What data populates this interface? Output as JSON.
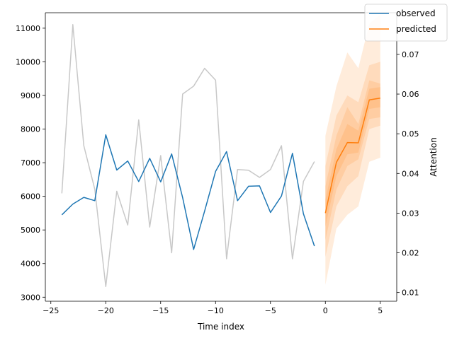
{
  "chart_data": {
    "type": "line",
    "xlabel": "Time index",
    "ylabel_left": "",
    "ylabel_right": "Attention",
    "xlim": [
      -25.5,
      6.5
    ],
    "ylim_left": [
      2880,
      11460
    ],
    "ylim_right": [
      0.0078,
      0.0805
    ],
    "x_ticks": [
      -25,
      -20,
      -15,
      -10,
      -5,
      0,
      5
    ],
    "y_ticks_left": [
      3000,
      4000,
      5000,
      6000,
      7000,
      8000,
      9000,
      10000,
      11000
    ],
    "y_ticks_right": [
      0.01,
      0.02,
      0.03,
      0.04,
      0.05,
      0.06,
      0.07
    ],
    "grid": false,
    "legend": {
      "placement": "top-right"
    },
    "series": [
      {
        "name": "observed",
        "axis": "left",
        "color": "#1f77b4",
        "x": [
          -24,
          -23,
          -22,
          -21,
          -20,
          -19,
          -18,
          -17,
          -16,
          -15,
          -14,
          -13,
          -12,
          -11,
          -10,
          -9,
          -8,
          -7,
          -6,
          -5,
          -4,
          -3,
          -2,
          -1
        ],
        "values": [
          5450,
          5770,
          5970,
          5870,
          7830,
          6780,
          7050,
          6440,
          7130,
          6430,
          7260,
          5960,
          4420,
          5560,
          6740,
          7330,
          5870,
          6300,
          6310,
          5520,
          6010,
          7280,
          5480,
          4520
        ]
      },
      {
        "name": "predicted",
        "axis": "left",
        "color": "#ff7f0e",
        "x": [
          0,
          1,
          2,
          3,
          4,
          5
        ],
        "values": [
          5500,
          7010,
          7600,
          7590,
          8870,
          8920
        ]
      },
      {
        "axis": "right",
        "color": "#c8c8c8",
        "x": [
          -24,
          -23,
          -22,
          -21,
          -20,
          -19,
          -18,
          -17,
          -16,
          -15,
          -14,
          -13,
          -12,
          -11,
          -10,
          -9,
          -8,
          -7,
          -6,
          -5,
          -4,
          -3,
          -2,
          -1
        ],
        "values": [
          0.035,
          0.0775,
          0.047,
          0.036,
          0.0115,
          0.0355,
          0.027,
          0.0535,
          0.0265,
          0.0445,
          0.02,
          0.06,
          0.062,
          0.0665,
          0.0635,
          0.0185,
          0.041,
          0.0408,
          0.039,
          0.041,
          0.047,
          0.0185,
          0.038,
          0.043
        ]
      }
    ],
    "bands": [
      {
        "color": "#ff7f0e",
        "opacity": 0.15,
        "x": [
          0,
          1,
          2,
          3,
          4,
          5
        ],
        "lower": [
          3370,
          5040,
          5450,
          5700,
          7030,
          7150
        ],
        "upper": [
          7800,
          9270,
          10280,
          9810,
          11140,
          11400
        ]
      },
      {
        "color": "#ff7f0e",
        "opacity": 0.15,
        "x": [
          0,
          1,
          2,
          3,
          4,
          5
        ],
        "lower": [
          4200,
          5700,
          6300,
          6600,
          8000,
          8100
        ],
        "upper": [
          6900,
          8400,
          9000,
          8800,
          9900,
          10000
        ]
      },
      {
        "color": "#ff7f0e",
        "opacity": 0.15,
        "x": [
          0,
          1,
          2,
          3,
          4,
          5
        ],
        "lower": [
          4700,
          6200,
          6900,
          7100,
          8300,
          8350
        ],
        "upper": [
          6300,
          7800,
          8650,
          8150,
          9450,
          9350
        ]
      },
      {
        "color": "#ff7f0e",
        "opacity": 0.15,
        "x": [
          0,
          1,
          2,
          3,
          4,
          5
        ],
        "lower": [
          5100,
          6600,
          7250,
          7300,
          8600,
          8650
        ],
        "upper": [
          5900,
          7400,
          8150,
          7950,
          9200,
          9250
        ]
      }
    ]
  }
}
